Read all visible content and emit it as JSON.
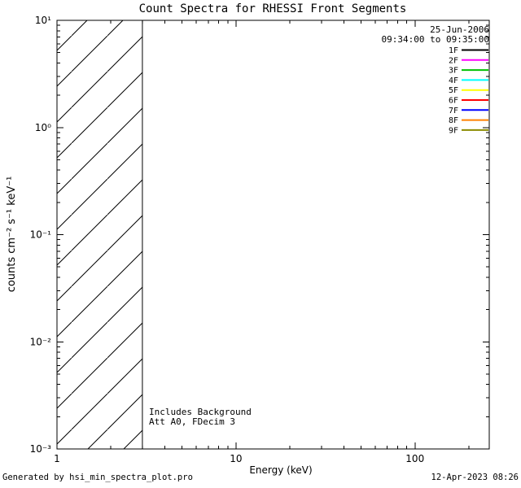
{
  "annotations": {
    "line1": "Includes Background",
    "line2": "Att A0, FDecim 3"
  },
  "footer": {
    "left": "Generated by hsi_min_spectra_plot.pro",
    "right": "12-Apr-2023 08:26"
  },
  "chart_data": {
    "type": "line",
    "title": "Count Spectra for RHESSI Front Segments",
    "xlabel": "Energy (keV)",
    "ylabel": "counts cm⁻² s⁻¹ keV⁻¹",
    "x_scale": "log",
    "y_scale": "log",
    "xlim": [
      1,
      260
    ],
    "ylim": [
      0.001,
      10
    ],
    "x_ticks": {
      "values": [
        1,
        10,
        100
      ],
      "labels": [
        "1",
        "10",
        "100"
      ]
    },
    "y_ticks": {
      "values": [
        10,
        1,
        0.1,
        0.01,
        0.001
      ],
      "labels": [
        "10¹",
        "10⁰",
        "10⁻¹",
        "10⁻²",
        "10⁻³"
      ]
    },
    "grid": false,
    "date_label": "25-Jun-2006",
    "time_range_label": "09:34:00 to 09:35:00",
    "legend_position": "top-right",
    "legend": [
      {
        "label": "1F",
        "color": "#000000"
      },
      {
        "label": "2F",
        "color": "#ff00ff"
      },
      {
        "label": "3F",
        "color": "#00c000"
      },
      {
        "label": "4F",
        "color": "#00ffff"
      },
      {
        "label": "5F",
        "color": "#ffff00"
      },
      {
        "label": "6F",
        "color": "#ff0000"
      },
      {
        "label": "7F",
        "color": "#0000ff"
      },
      {
        "label": "8F",
        "color": "#ff8000"
      },
      {
        "label": "9F",
        "color": "#8b8b00"
      }
    ],
    "series": [],
    "hatched_region": {
      "x_start": 1,
      "x_end": 3,
      "y_span": "full",
      "style": "diagonal-hatch"
    }
  }
}
